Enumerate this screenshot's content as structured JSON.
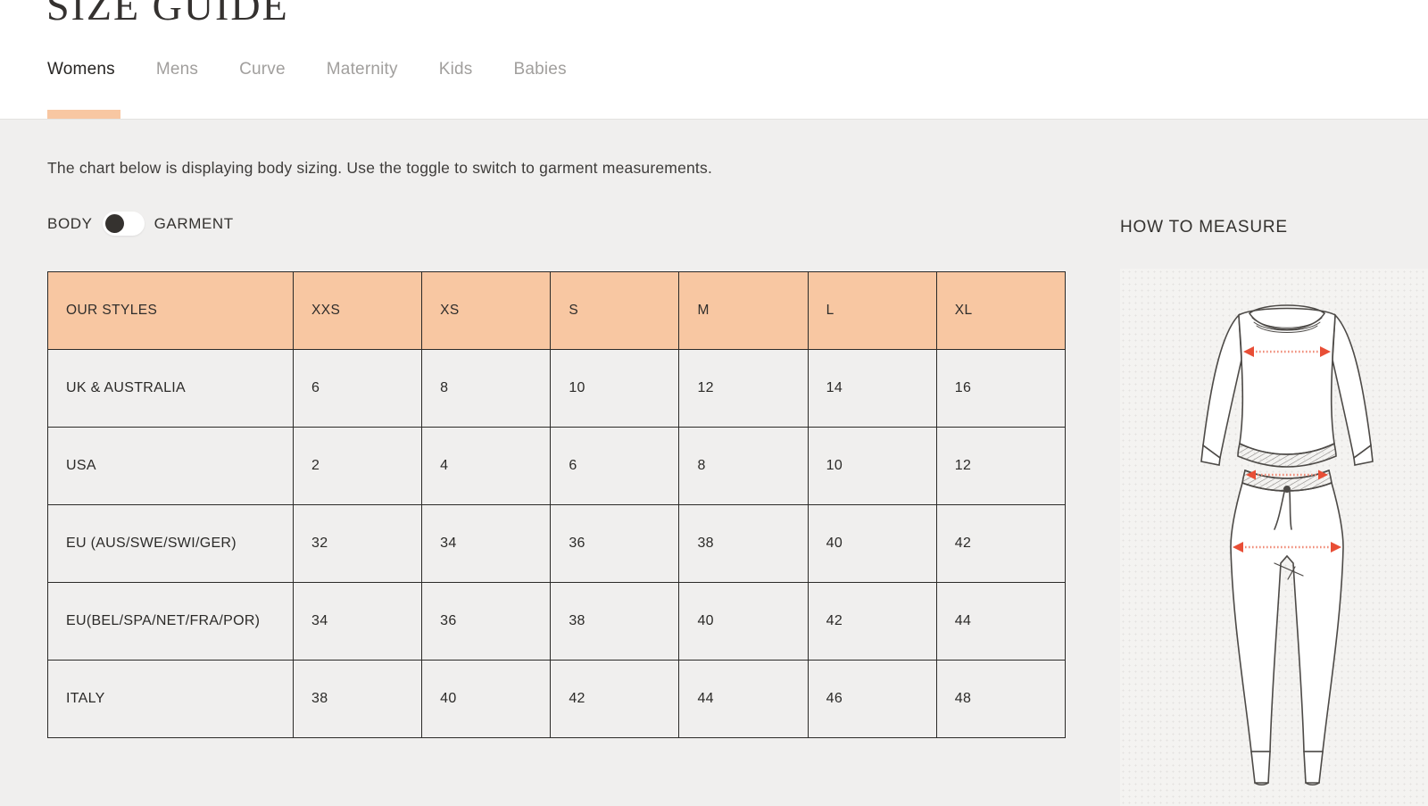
{
  "page": {
    "title": "SIZE GUIDE",
    "tabs": [
      {
        "label": "Womens",
        "active": true
      },
      {
        "label": "Mens",
        "active": false
      },
      {
        "label": "Curve",
        "active": false
      },
      {
        "label": "Maternity",
        "active": false
      },
      {
        "label": "Kids",
        "active": false
      },
      {
        "label": "Babies",
        "active": false
      }
    ],
    "description": "The chart below is displaying body sizing. Use the toggle to switch to garment measurements.",
    "toggle": {
      "left_label": "BODY",
      "right_label": "GARMENT",
      "state": "body"
    },
    "how_to_measure_label": "HOW TO MEASURE"
  },
  "size_table": {
    "headers": [
      "OUR STYLES",
      "XXS",
      "XS",
      "S",
      "M",
      "L",
      "XL"
    ],
    "rows": [
      {
        "label": "UK & AUSTRALIA",
        "values": [
          "6",
          "8",
          "10",
          "12",
          "14",
          "16"
        ]
      },
      {
        "label": "USA",
        "values": [
          "2",
          "4",
          "6",
          "8",
          "10",
          "12"
        ]
      },
      {
        "label": "EU (AUS/SWE/SWI/GER)",
        "values": [
          "32",
          "34",
          "36",
          "38",
          "40",
          "42"
        ]
      },
      {
        "label": "EU(BEL/SPA/NET/FRA/POR)",
        "values": [
          "34",
          "36",
          "38",
          "40",
          "42",
          "44"
        ]
      },
      {
        "label": "ITALY",
        "values": [
          "38",
          "40",
          "42",
          "44",
          "46",
          "48"
        ]
      }
    ]
  },
  "icons": {
    "chest_arrow": "horizontal-measure-arrow",
    "waist_arrow": "horizontal-measure-arrow",
    "hip_arrow": "horizontal-measure-arrow"
  },
  "colors": {
    "accent_peach": "#f8c7a2",
    "content_background": "#f0efee",
    "table_border": "#2b2a28",
    "toggle_knob": "#35322f",
    "arrow_red": "#e84e36",
    "tab_inactive": "#a19f9d",
    "text_dark": "#34312f"
  }
}
